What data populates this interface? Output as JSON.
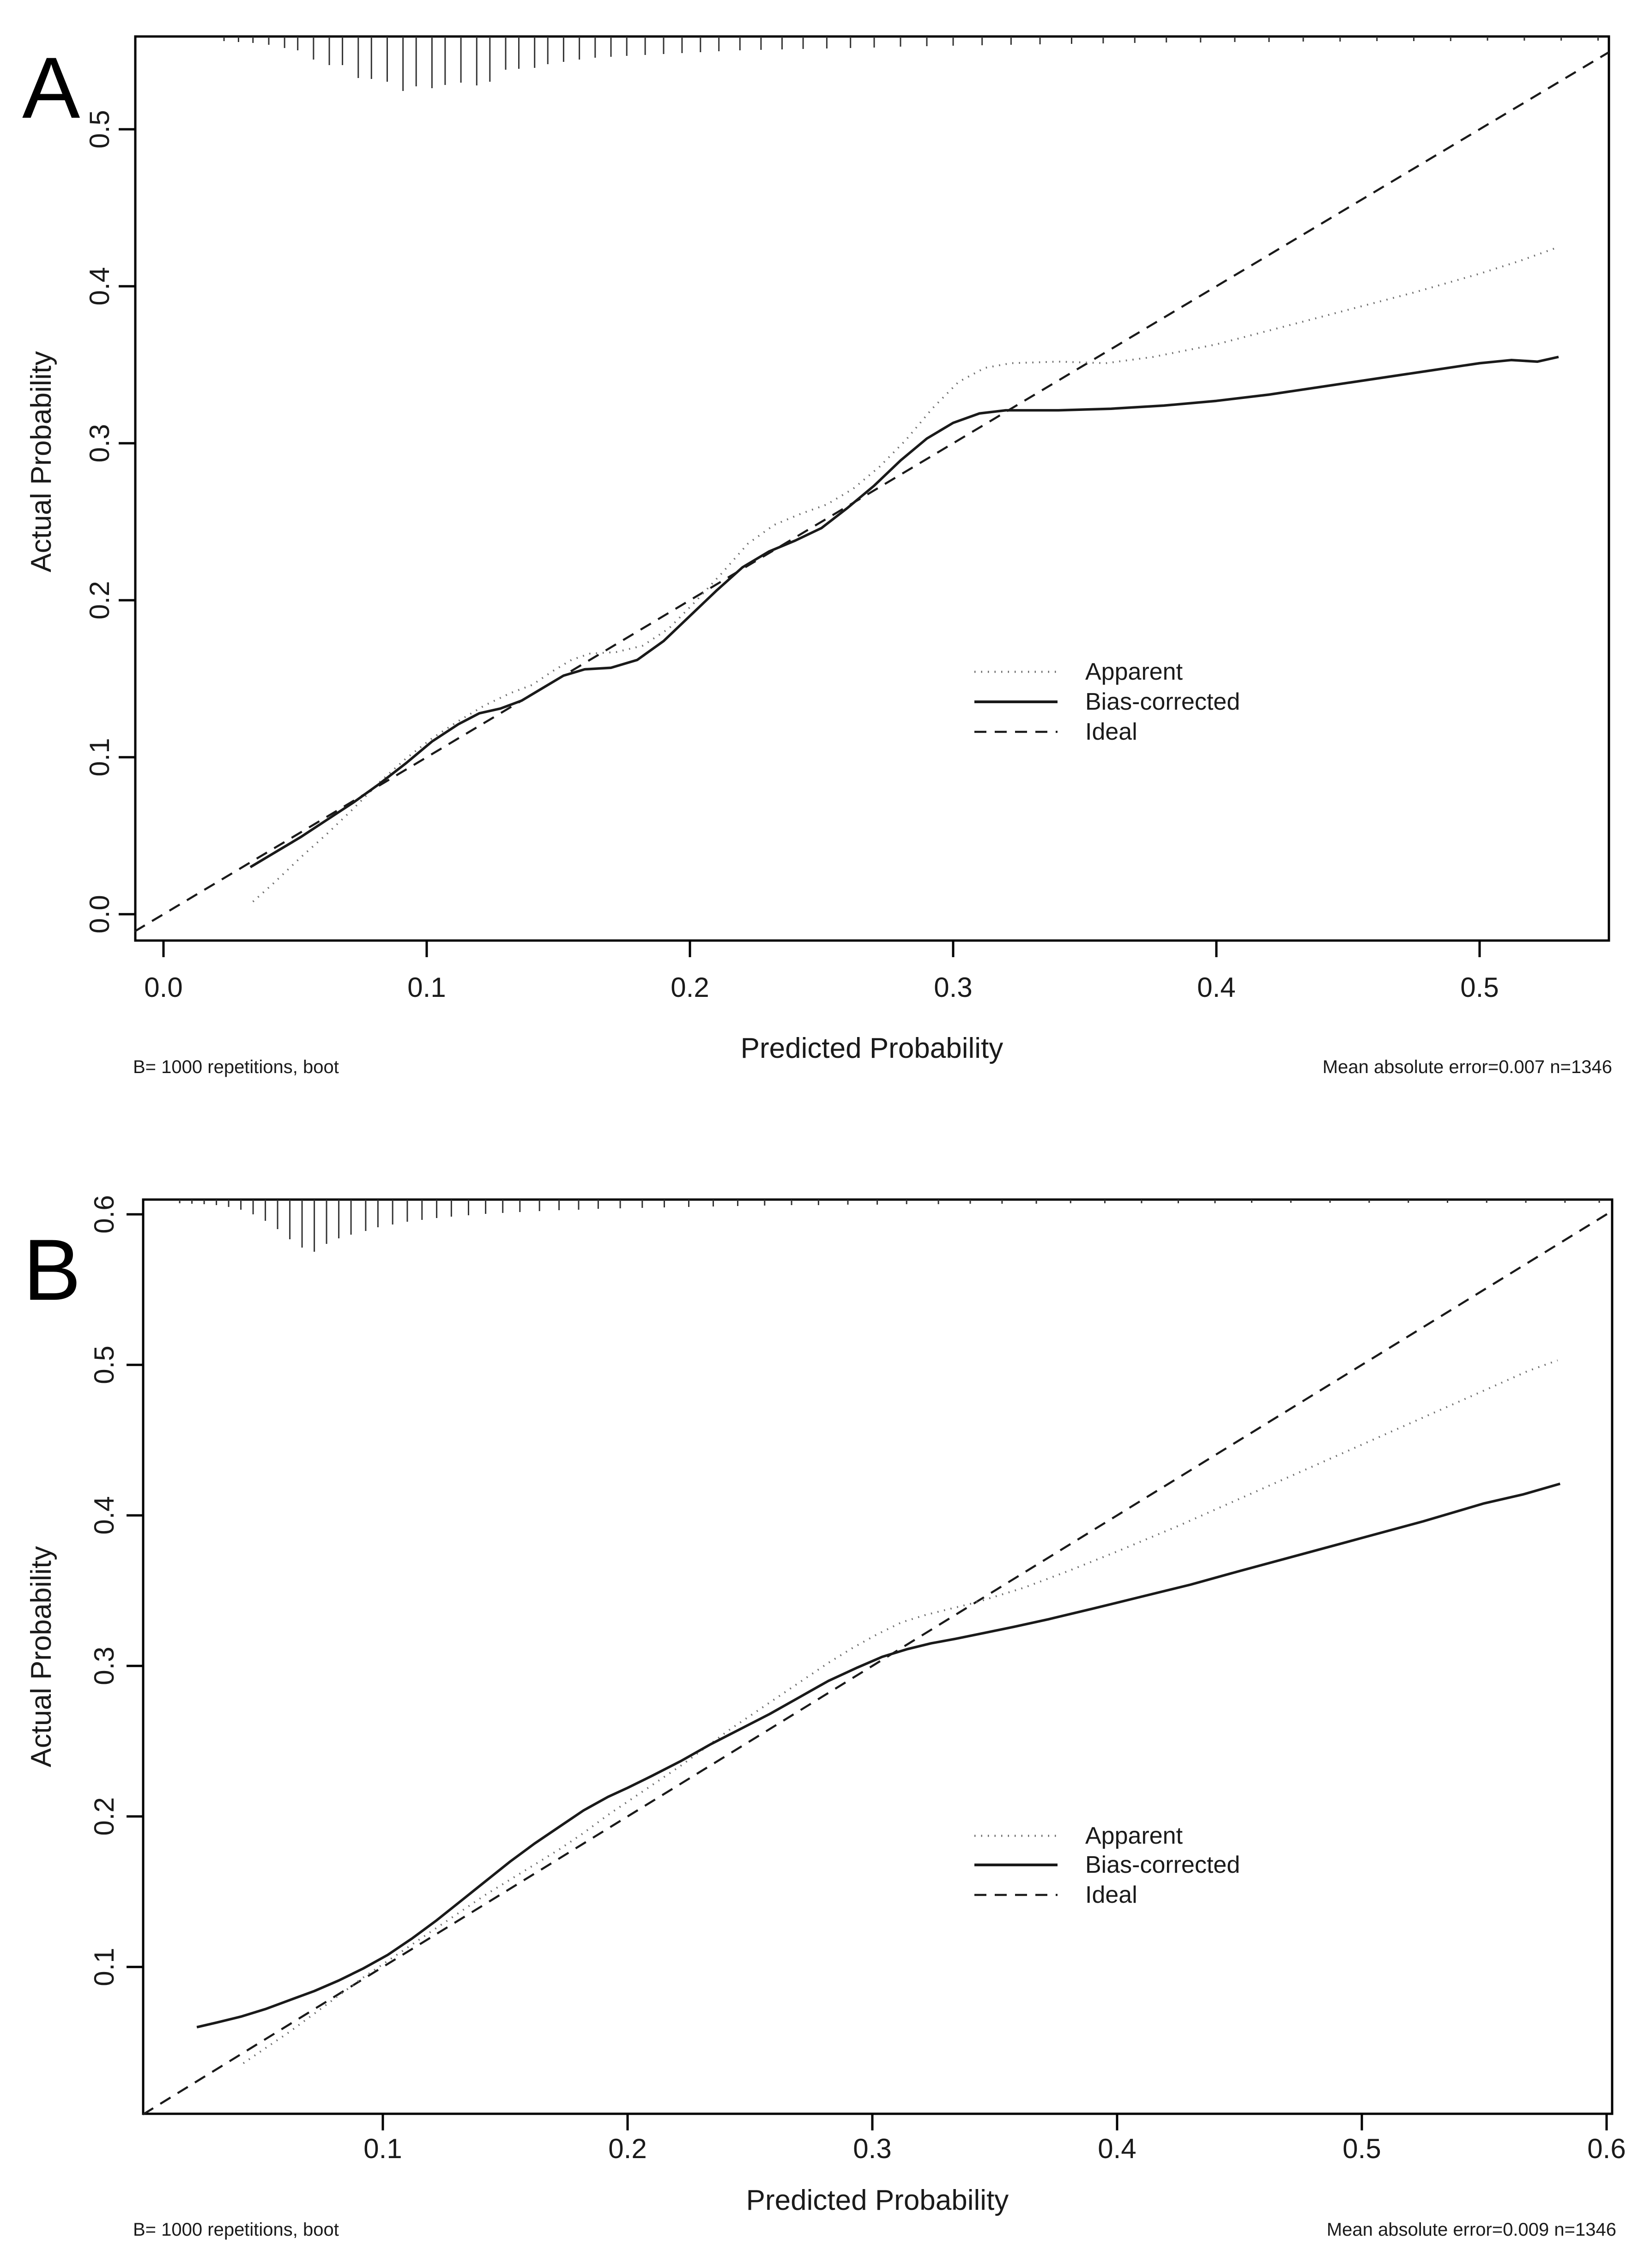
{
  "figure": {
    "panels": [
      {
        "panel_label": "A",
        "x_axis_label": "Predicted Probability",
        "y_axis_label": "Actual Probability",
        "footnote_left": "B= 1000 repetitions, boot",
        "footnote_right": "Mean absolute error=0.007 n=1346",
        "legend": [
          {
            "label": "Apparent"
          },
          {
            "label": "Bias-corrected"
          },
          {
            "label": "Ideal"
          }
        ]
      },
      {
        "panel_label": "B",
        "x_axis_label": "Predicted Probability",
        "y_axis_label": "Actual Probability",
        "footnote_left": "B= 1000 repetitions, boot",
        "footnote_right": "Mean absolute error=0.009 n=1346",
        "legend": [
          {
            "label": "Apparent"
          },
          {
            "label": "Bias-corrected"
          },
          {
            "label": "Ideal"
          }
        ]
      }
    ]
  },
  "colors": {
    "axis": "#000000",
    "solid_line": "#1a1a1a",
    "dashed_line": "#1a1a1a",
    "dotted_line": "#6b6b6b",
    "rug": "#333333",
    "background": "#ffffff"
  },
  "chart_data": [
    {
      "type": "line",
      "panel": "A",
      "xlabel": "Predicted Probability",
      "ylabel": "Actual Probability",
      "xlim": [
        -0.011,
        0.549
      ],
      "ylim": [
        -0.017,
        0.559
      ],
      "grid": false,
      "legend_position": "inside-right-middle",
      "x_ticks": [
        0.0,
        0.1,
        0.2,
        0.3,
        0.4,
        0.5
      ],
      "x_tick_labels": [
        "0.0",
        "0.1",
        "0.2",
        "0.3",
        "0.4",
        "0.5"
      ],
      "y_ticks": [
        0.0,
        0.1,
        0.2,
        0.3,
        0.4,
        0.5
      ],
      "y_tick_labels": [
        "0.0",
        "0.1",
        "0.2",
        "0.3",
        "0.4",
        "0.5"
      ],
      "annotations": {
        "left": "B= 1000 repetitions, boot",
        "right": "Mean absolute error=0.007 n=1346"
      },
      "series": [
        {
          "name": "Apparent",
          "style": "dotted",
          "color": "#6b6b6b",
          "points": [
            [
              0.034,
              0.008
            ],
            [
              0.042,
              0.02
            ],
            [
              0.052,
              0.036
            ],
            [
              0.062,
              0.051
            ],
            [
              0.072,
              0.067
            ],
            [
              0.082,
              0.084
            ],
            [
              0.092,
              0.099
            ],
            [
              0.102,
              0.112
            ],
            [
              0.112,
              0.123
            ],
            [
              0.122,
              0.133
            ],
            [
              0.132,
              0.141
            ],
            [
              0.14,
              0.146
            ],
            [
              0.148,
              0.155
            ],
            [
              0.155,
              0.162
            ],
            [
              0.162,
              0.166
            ],
            [
              0.172,
              0.167
            ],
            [
              0.182,
              0.171
            ],
            [
              0.192,
              0.182
            ],
            [
              0.202,
              0.199
            ],
            [
              0.212,
              0.217
            ],
            [
              0.222,
              0.236
            ],
            [
              0.232,
              0.248
            ],
            [
              0.242,
              0.255
            ],
            [
              0.252,
              0.261
            ],
            [
              0.262,
              0.271
            ],
            [
              0.272,
              0.285
            ],
            [
              0.282,
              0.302
            ],
            [
              0.292,
              0.322
            ],
            [
              0.302,
              0.339
            ],
            [
              0.312,
              0.348
            ],
            [
              0.322,
              0.351
            ],
            [
              0.34,
              0.352
            ],
            [
              0.358,
              0.351
            ],
            [
              0.376,
              0.355
            ],
            [
              0.4,
              0.363
            ],
            [
              0.425,
              0.374
            ],
            [
              0.45,
              0.385
            ],
            [
              0.475,
              0.396
            ],
            [
              0.5,
              0.408
            ],
            [
              0.515,
              0.416
            ],
            [
              0.53,
              0.425
            ]
          ]
        },
        {
          "name": "Bias-corrected",
          "style": "solid",
          "color": "#1a1a1a",
          "points": [
            [
              0.033,
              0.03
            ],
            [
              0.042,
              0.039
            ],
            [
              0.052,
              0.049
            ],
            [
              0.062,
              0.06
            ],
            [
              0.072,
              0.071
            ],
            [
              0.082,
              0.083
            ],
            [
              0.092,
              0.096
            ],
            [
              0.102,
              0.11
            ],
            [
              0.112,
              0.121
            ],
            [
              0.12,
              0.128
            ],
            [
              0.128,
              0.131
            ],
            [
              0.136,
              0.136
            ],
            [
              0.144,
              0.144
            ],
            [
              0.152,
              0.152
            ],
            [
              0.16,
              0.156
            ],
            [
              0.17,
              0.157
            ],
            [
              0.18,
              0.162
            ],
            [
              0.19,
              0.174
            ],
            [
              0.2,
              0.19
            ],
            [
              0.21,
              0.206
            ],
            [
              0.22,
              0.221
            ],
            [
              0.23,
              0.231
            ],
            [
              0.24,
              0.238
            ],
            [
              0.25,
              0.246
            ],
            [
              0.26,
              0.259
            ],
            [
              0.27,
              0.273
            ],
            [
              0.28,
              0.289
            ],
            [
              0.29,
              0.303
            ],
            [
              0.3,
              0.313
            ],
            [
              0.31,
              0.319
            ],
            [
              0.32,
              0.321
            ],
            [
              0.34,
              0.321
            ],
            [
              0.36,
              0.322
            ],
            [
              0.38,
              0.324
            ],
            [
              0.4,
              0.327
            ],
            [
              0.42,
              0.331
            ],
            [
              0.44,
              0.336
            ],
            [
              0.46,
              0.341
            ],
            [
              0.48,
              0.346
            ],
            [
              0.5,
              0.351
            ],
            [
              0.512,
              0.353
            ],
            [
              0.522,
              0.352
            ],
            [
              0.53,
              0.355
            ]
          ]
        },
        {
          "name": "Ideal",
          "style": "dashed",
          "color": "#1a1a1a",
          "points": [
            [
              -0.011,
              -0.011
            ],
            [
              0.549,
              0.549
            ]
          ]
        }
      ],
      "rug": {
        "x": [
          0.023,
          0.0285,
          0.034,
          0.04,
          0.046,
          0.051,
          0.057,
          0.063,
          0.068,
          0.074,
          0.079,
          0.085,
          0.091,
          0.096,
          0.102,
          0.107,
          0.113,
          0.119,
          0.124,
          0.13,
          0.135,
          0.141,
          0.146,
          0.152,
          0.158,
          0.164,
          0.17,
          0.176,
          0.183,
          0.19,
          0.197,
          0.204,
          0.211,
          0.219,
          0.227,
          0.235,
          0.243,
          0.252,
          0.261,
          0.27,
          0.28,
          0.29,
          0.3,
          0.311,
          0.322,
          0.333,
          0.345,
          0.357,
          0.369,
          0.381,
          0.394,
          0.407,
          0.42,
          0.433,
          0.447,
          0.461,
          0.475,
          0.489,
          0.503,
          0.517,
          0.531,
          0.545
        ],
        "len": [
          10,
          12,
          14,
          18,
          25,
          30,
          50,
          62,
          62,
          90,
          92,
          98,
          118,
          108,
          112,
          105,
          100,
          106,
          98,
          72,
          70,
          68,
          60,
          55,
          50,
          46,
          44,
          42,
          40,
          38,
          36,
          34,
          32,
          30,
          29,
          28,
          27,
          26,
          25,
          24,
          22,
          21,
          20,
          19,
          18,
          17,
          16,
          15,
          14,
          13,
          13,
          12,
          12,
          11,
          11,
          10,
          10,
          10,
          9,
          9,
          9,
          9
        ]
      }
    },
    {
      "type": "line",
      "panel": "B",
      "xlabel": "Predicted Probability",
      "ylabel": "Actual Probability",
      "xlim": [
        0.002,
        0.602
      ],
      "ylim": [
        0.002,
        0.61
      ],
      "grid": false,
      "legend_position": "inside-right-middle",
      "x_ticks": [
        0.1,
        0.2,
        0.3,
        0.4,
        0.5,
        0.6
      ],
      "x_tick_labels": [
        "0.1",
        "0.2",
        "0.3",
        "0.4",
        "0.5",
        "0.6"
      ],
      "y_ticks": [
        0.1,
        0.2,
        0.3,
        0.4,
        0.5,
        0.6
      ],
      "y_tick_labels": [
        "0.1",
        "0.2",
        "0.3",
        "0.4",
        "0.5",
        "0.6"
      ],
      "annotations": {
        "left": "B= 1000 repetitions, boot",
        "right": "Mean absolute error=0.009 n=1346"
      },
      "series": [
        {
          "name": "Apparent",
          "style": "dotted",
          "color": "#6b6b6b",
          "points": [
            [
              0.043,
              0.036
            ],
            [
              0.052,
              0.046
            ],
            [
              0.062,
              0.057
            ],
            [
              0.072,
              0.069
            ],
            [
              0.082,
              0.081
            ],
            [
              0.092,
              0.093
            ],
            [
              0.102,
              0.104
            ],
            [
              0.112,
              0.115
            ],
            [
              0.122,
              0.126
            ],
            [
              0.132,
              0.137
            ],
            [
              0.142,
              0.148
            ],
            [
              0.152,
              0.158
            ],
            [
              0.162,
              0.168
            ],
            [
              0.172,
              0.178
            ],
            [
              0.182,
              0.189
            ],
            [
              0.192,
              0.201
            ],
            [
              0.202,
              0.212
            ],
            [
              0.212,
              0.223
            ],
            [
              0.222,
              0.234
            ],
            [
              0.232,
              0.246
            ],
            [
              0.242,
              0.258
            ],
            [
              0.252,
              0.269
            ],
            [
              0.262,
              0.28
            ],
            [
              0.272,
              0.291
            ],
            [
              0.282,
              0.302
            ],
            [
              0.292,
              0.312
            ],
            [
              0.302,
              0.321
            ],
            [
              0.312,
              0.329
            ],
            [
              0.322,
              0.334
            ],
            [
              0.332,
              0.338
            ],
            [
              0.342,
              0.342
            ],
            [
              0.352,
              0.347
            ],
            [
              0.362,
              0.352
            ],
            [
              0.38,
              0.363
            ],
            [
              0.4,
              0.376
            ],
            [
              0.425,
              0.393
            ],
            [
              0.45,
              0.411
            ],
            [
              0.475,
              0.429
            ],
            [
              0.5,
              0.447
            ],
            [
              0.525,
              0.465
            ],
            [
              0.55,
              0.483
            ],
            [
              0.568,
              0.496
            ],
            [
              0.58,
              0.503
            ]
          ]
        },
        {
          "name": "Bias-corrected",
          "style": "solid",
          "color": "#1a1a1a",
          "points": [
            [
              0.024,
              0.06
            ],
            [
              0.032,
              0.063
            ],
            [
              0.042,
              0.067
            ],
            [
              0.052,
              0.072
            ],
            [
              0.062,
              0.078
            ],
            [
              0.072,
              0.084
            ],
            [
              0.082,
              0.091
            ],
            [
              0.092,
              0.099
            ],
            [
              0.102,
              0.108
            ],
            [
              0.112,
              0.119
            ],
            [
              0.122,
              0.131
            ],
            [
              0.132,
              0.144
            ],
            [
              0.142,
              0.157
            ],
            [
              0.152,
              0.17
            ],
            [
              0.162,
              0.182
            ],
            [
              0.172,
              0.193
            ],
            [
              0.182,
              0.204
            ],
            [
              0.192,
              0.213
            ],
            [
              0.2,
              0.219
            ],
            [
              0.21,
              0.227
            ],
            [
              0.222,
              0.237
            ],
            [
              0.234,
              0.248
            ],
            [
              0.246,
              0.258
            ],
            [
              0.258,
              0.268
            ],
            [
              0.27,
              0.279
            ],
            [
              0.282,
              0.29
            ],
            [
              0.294,
              0.299
            ],
            [
              0.304,
              0.306
            ],
            [
              0.314,
              0.311
            ],
            [
              0.324,
              0.315
            ],
            [
              0.334,
              0.318
            ],
            [
              0.346,
              0.322
            ],
            [
              0.358,
              0.326
            ],
            [
              0.372,
              0.331
            ],
            [
              0.39,
              0.338
            ],
            [
              0.41,
              0.346
            ],
            [
              0.43,
              0.354
            ],
            [
              0.45,
              0.363
            ],
            [
              0.475,
              0.374
            ],
            [
              0.5,
              0.385
            ],
            [
              0.525,
              0.396
            ],
            [
              0.55,
              0.408
            ],
            [
              0.566,
              0.414
            ],
            [
              0.581,
              0.421
            ]
          ]
        },
        {
          "name": "Ideal",
          "style": "dashed",
          "color": "#1a1a1a",
          "points": [
            [
              0.002,
              0.002
            ],
            [
              0.602,
              0.602
            ]
          ]
        }
      ],
      "rug": {
        "x": [
          0.017,
          0.022,
          0.027,
          0.032,
          0.037,
          0.042,
          0.047,
          0.052,
          0.057,
          0.062,
          0.067,
          0.072,
          0.077,
          0.082,
          0.087,
          0.093,
          0.098,
          0.104,
          0.11,
          0.116,
          0.122,
          0.128,
          0.135,
          0.142,
          0.149,
          0.156,
          0.164,
          0.172,
          0.18,
          0.188,
          0.197,
          0.206,
          0.215,
          0.225,
          0.235,
          0.245,
          0.256,
          0.267,
          0.278,
          0.29,
          0.302,
          0.314,
          0.327,
          0.34,
          0.353,
          0.367,
          0.381,
          0.395,
          0.41,
          0.425,
          0.44,
          0.455,
          0.471,
          0.487,
          0.503,
          0.519,
          0.535,
          0.551,
          0.567,
          0.583,
          0.597
        ],
        "len": [
          8,
          9,
          10,
          12,
          16,
          22,
          32,
          46,
          64,
          86,
          104,
          113,
          96,
          84,
          76,
          68,
          60,
          54,
          48,
          44,
          40,
          37,
          34,
          31,
          29,
          27,
          25,
          23,
          22,
          20,
          19,
          18,
          17,
          16,
          15,
          14,
          13,
          12,
          12,
          11,
          11,
          10,
          10,
          9,
          9,
          9,
          8,
          8,
          8,
          8,
          8,
          7,
          7,
          7,
          7,
          7,
          7,
          7,
          7,
          7,
          7
        ]
      }
    }
  ]
}
